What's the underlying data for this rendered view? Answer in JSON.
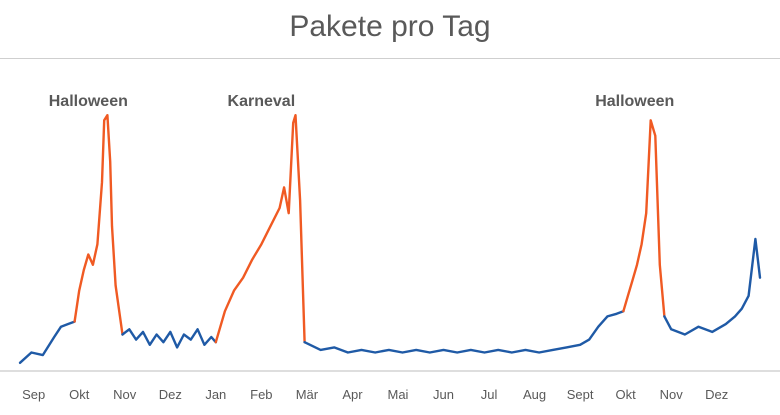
{
  "title": "Pakete pro Tag",
  "colors": {
    "normal": "#1f5aa6",
    "peak": "#f05a23",
    "text": "#595959",
    "axis": "#bdbdbd"
  },
  "chart_data": {
    "type": "line",
    "title": "Pakete pro Tag",
    "xlabel": "",
    "ylabel": "",
    "ylim": [
      0,
      100
    ],
    "grid": false,
    "legend": "none",
    "x_ticks": [
      "Sep",
      "Okt",
      "Nov",
      "Dez",
      "Jan",
      "Feb",
      "Mär",
      "Apr",
      "Mai",
      "Jun",
      "Jul",
      "Aug",
      "Sept",
      "Okt",
      "Nov",
      "Dez"
    ],
    "annotations": [
      {
        "text": "Halloween",
        "x": 1.2
      },
      {
        "text": "Karneval",
        "x": 5.0
      },
      {
        "text": "Halloween",
        "x": 13.2
      }
    ],
    "series": [
      {
        "color": "normal",
        "x": [
          -0.3,
          -0.05,
          0.2,
          0.45,
          0.6,
          0.75,
          0.9
        ],
        "y": [
          2,
          6,
          5,
          12,
          16,
          17,
          18
        ]
      },
      {
        "color": "peak",
        "x": [
          0.9,
          1.0,
          1.1,
          1.2,
          1.3,
          1.4,
          1.5,
          1.55,
          1.62,
          1.68,
          1.72,
          1.8,
          1.95
        ],
        "y": [
          18,
          30,
          38,
          44,
          40,
          48,
          72,
          96,
          98,
          80,
          55,
          32,
          13
        ]
      },
      {
        "color": "normal",
        "x": [
          1.95,
          2.1,
          2.25,
          2.4,
          2.55,
          2.7,
          2.85,
          3.0,
          3.15,
          3.3,
          3.45,
          3.6,
          3.75,
          3.9,
          4.0
        ],
        "y": [
          13,
          15,
          11,
          14,
          9,
          13,
          10,
          14,
          8,
          13,
          11,
          15,
          9,
          12,
          10
        ]
      },
      {
        "color": "peak",
        "x": [
          4.0,
          4.2,
          4.4,
          4.6,
          4.8,
          5.0,
          5.2,
          5.4,
          5.5,
          5.6,
          5.7,
          5.75,
          5.85,
          5.95
        ],
        "y": [
          10,
          22,
          30,
          35,
          42,
          48,
          55,
          62,
          70,
          60,
          95,
          98,
          65,
          10
        ]
      },
      {
        "color": "normal",
        "x": [
          5.95,
          6.3,
          6.6,
          6.9,
          7.2,
          7.5,
          7.8,
          8.1,
          8.4,
          8.7,
          9.0,
          9.3,
          9.6,
          9.9,
          10.2,
          10.5,
          10.8,
          11.1,
          11.4,
          11.7,
          12.0,
          12.2,
          12.4,
          12.6,
          12.8,
          12.95
        ],
        "y": [
          10,
          7,
          8,
          6,
          7,
          6,
          7,
          6,
          7,
          6,
          7,
          6,
          7,
          6,
          7,
          6,
          7,
          6,
          7,
          8,
          9,
          11,
          16,
          20,
          21,
          22
        ]
      },
      {
        "color": "peak",
        "x": [
          12.95,
          13.05,
          13.15,
          13.25,
          13.35,
          13.45,
          13.55,
          13.65,
          13.75,
          13.85
        ],
        "y": [
          22,
          28,
          34,
          40,
          48,
          60,
          96,
          90,
          40,
          20
        ]
      },
      {
        "color": "normal",
        "x": [
          13.85,
          14.0,
          14.3,
          14.6,
          14.9,
          15.2,
          15.4,
          15.55,
          15.7,
          15.85,
          15.95
        ],
        "y": [
          20,
          15,
          13,
          16,
          14,
          17,
          20,
          23,
          28,
          50,
          35
        ]
      }
    ]
  }
}
